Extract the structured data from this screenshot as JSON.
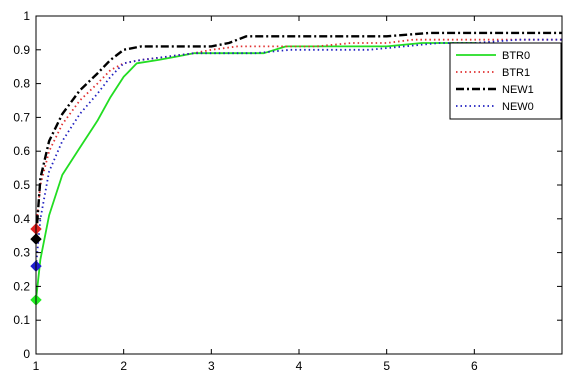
{
  "chart_data": {
    "type": "line",
    "title": "",
    "xlabel": "",
    "ylabel": "",
    "xlim": [
      1,
      7
    ],
    "ylim": [
      0,
      1
    ],
    "xticks": [
      "1",
      "2",
      "3",
      "4",
      "5",
      "6"
    ],
    "yticks": [
      "0",
      "0.1",
      "0.2",
      "0.3",
      "0.4",
      "0.5",
      "0.6",
      "0.7",
      "0.8",
      "0.9",
      "1"
    ],
    "grid": false,
    "legend": "top-right",
    "series": [
      {
        "name": "BTR0",
        "color": "#22dd22",
        "dash": "solid",
        "marker_color": "#22ee22",
        "points": [
          [
            1,
            0.16
          ],
          [
            1.05,
            0.28
          ],
          [
            1.15,
            0.41
          ],
          [
            1.3,
            0.53
          ],
          [
            1.5,
            0.61
          ],
          [
            1.7,
            0.69
          ],
          [
            1.85,
            0.76
          ],
          [
            2.0,
            0.82
          ],
          [
            2.15,
            0.86
          ],
          [
            2.4,
            0.87
          ],
          [
            2.6,
            0.88
          ],
          [
            2.8,
            0.89
          ],
          [
            3.0,
            0.89
          ],
          [
            3.3,
            0.89
          ],
          [
            3.6,
            0.89
          ],
          [
            3.85,
            0.91
          ],
          [
            4.2,
            0.91
          ],
          [
            4.6,
            0.91
          ],
          [
            5.0,
            0.91
          ],
          [
            5.4,
            0.92
          ],
          [
            6.0,
            0.92
          ],
          [
            6.5,
            0.91
          ],
          [
            7.0,
            0.91
          ]
        ]
      },
      {
        "name": "BTR1",
        "color": "#e03030",
        "dash": "dot",
        "marker_color": "#e02020",
        "points": [
          [
            1,
            0.37
          ],
          [
            1.05,
            0.5
          ],
          [
            1.15,
            0.6
          ],
          [
            1.3,
            0.68
          ],
          [
            1.5,
            0.75
          ],
          [
            1.7,
            0.8
          ],
          [
            1.85,
            0.84
          ],
          [
            2.0,
            0.86
          ],
          [
            2.2,
            0.87
          ],
          [
            2.5,
            0.88
          ],
          [
            2.8,
            0.89
          ],
          [
            3.0,
            0.9
          ],
          [
            3.3,
            0.91
          ],
          [
            3.6,
            0.91
          ],
          [
            3.9,
            0.91
          ],
          [
            4.2,
            0.91
          ],
          [
            4.6,
            0.92
          ],
          [
            5.0,
            0.92
          ],
          [
            5.3,
            0.93
          ],
          [
            6.0,
            0.93
          ],
          [
            6.5,
            0.93
          ],
          [
            7.0,
            0.93
          ]
        ]
      },
      {
        "name": "NEW1",
        "color": "#000000",
        "dash": "dashdot",
        "marker_color": "#000000",
        "points": [
          [
            1,
            0.34
          ],
          [
            1.05,
            0.52
          ],
          [
            1.15,
            0.63
          ],
          [
            1.3,
            0.71
          ],
          [
            1.5,
            0.78
          ],
          [
            1.7,
            0.83
          ],
          [
            1.85,
            0.87
          ],
          [
            2.0,
            0.9
          ],
          [
            2.2,
            0.91
          ],
          [
            2.5,
            0.91
          ],
          [
            2.8,
            0.91
          ],
          [
            3.0,
            0.91
          ],
          [
            3.2,
            0.92
          ],
          [
            3.4,
            0.94
          ],
          [
            3.7,
            0.94
          ],
          [
            4.0,
            0.94
          ],
          [
            4.5,
            0.94
          ],
          [
            5.0,
            0.94
          ],
          [
            5.5,
            0.95
          ],
          [
            6.0,
            0.95
          ],
          [
            6.5,
            0.95
          ],
          [
            7.0,
            0.95
          ]
        ]
      },
      {
        "name": "NEW0",
        "color": "#2020c0",
        "dash": "dot",
        "marker_color": "#2020d0",
        "points": [
          [
            1,
            0.26
          ],
          [
            1.05,
            0.4
          ],
          [
            1.15,
            0.54
          ],
          [
            1.3,
            0.63
          ],
          [
            1.5,
            0.71
          ],
          [
            1.7,
            0.77
          ],
          [
            1.85,
            0.82
          ],
          [
            2.0,
            0.86
          ],
          [
            2.2,
            0.87
          ],
          [
            2.5,
            0.88
          ],
          [
            2.8,
            0.89
          ],
          [
            3.0,
            0.89
          ],
          [
            3.2,
            0.89
          ],
          [
            3.5,
            0.89
          ],
          [
            3.9,
            0.9
          ],
          [
            4.3,
            0.9
          ],
          [
            4.8,
            0.9
          ],
          [
            5.2,
            0.91
          ],
          [
            5.6,
            0.92
          ],
          [
            6.0,
            0.92
          ],
          [
            6.5,
            0.93
          ],
          [
            7.0,
            0.93
          ]
        ]
      }
    ]
  }
}
